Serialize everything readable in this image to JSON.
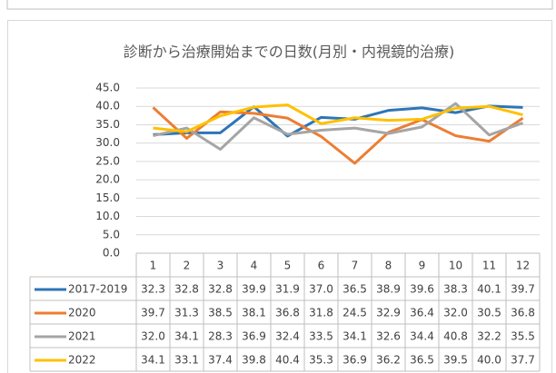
{
  "chart_data": {
    "type": "line",
    "title": "診断から治療開始までの日数(月別・内視鏡的治療)",
    "categories": [
      "1",
      "2",
      "3",
      "4",
      "5",
      "6",
      "7",
      "8",
      "9",
      "10",
      "11",
      "12"
    ],
    "series": [
      {
        "name": "2017-2019",
        "color": "#2e75b6",
        "values": [
          32.3,
          32.8,
          32.8,
          39.9,
          31.9,
          37.0,
          36.5,
          38.9,
          39.6,
          38.3,
          40.1,
          39.7
        ],
        "value_labels": [
          "32.3",
          "32.8",
          "32.8",
          "39.9",
          "31.9",
          "37.0",
          "36.5",
          "38.9",
          "39.6",
          "38.3",
          "40.1",
          "39.7"
        ]
      },
      {
        "name": "2020",
        "color": "#ed7d31",
        "values": [
          39.7,
          31.3,
          38.5,
          38.1,
          36.8,
          31.8,
          24.5,
          32.9,
          36.4,
          32.0,
          30.5,
          36.8
        ],
        "value_labels": [
          "39.7",
          "31.3",
          "38.5",
          "38.1",
          "36.8",
          "31.8",
          "24.5",
          "32.9",
          "36.4",
          "32.0",
          "30.5",
          "36.8"
        ]
      },
      {
        "name": "2021",
        "color": "#a5a5a5",
        "values": [
          32.0,
          34.1,
          28.3,
          36.9,
          32.4,
          33.5,
          34.1,
          32.6,
          34.4,
          40.8,
          32.2,
          35.5
        ],
        "value_labels": [
          "32.0",
          "34.1",
          "28.3",
          "36.9",
          "32.4",
          "33.5",
          "34.1",
          "32.6",
          "34.4",
          "40.8",
          "32.2",
          "35.5"
        ]
      },
      {
        "name": "2022",
        "color": "#ffc000",
        "values": [
          34.1,
          33.1,
          37.4,
          39.8,
          40.4,
          35.3,
          36.9,
          36.2,
          36.5,
          39.5,
          40.0,
          37.7
        ],
        "value_labels": [
          "34.1",
          "33.1",
          "37.4",
          "39.8",
          "40.4",
          "35.3",
          "36.9",
          "36.2",
          "36.5",
          "39.5",
          "40.0",
          "37.7"
        ]
      }
    ],
    "ylim": [
      0,
      45
    ],
    "yticks": [
      {
        "value": 0,
        "label": "0.0"
      },
      {
        "value": 5,
        "label": "5.0"
      },
      {
        "value": 10,
        "label": "10.0"
      },
      {
        "value": 15,
        "label": "15.0"
      },
      {
        "value": 20,
        "label": "20.0"
      },
      {
        "value": 25,
        "label": "25.0"
      },
      {
        "value": 30,
        "label": "30.0"
      },
      {
        "value": 35,
        "label": "35.0"
      },
      {
        "value": 40,
        "label": "40.0"
      },
      {
        "value": 45,
        "label": "45.0"
      }
    ],
    "grid": true
  }
}
